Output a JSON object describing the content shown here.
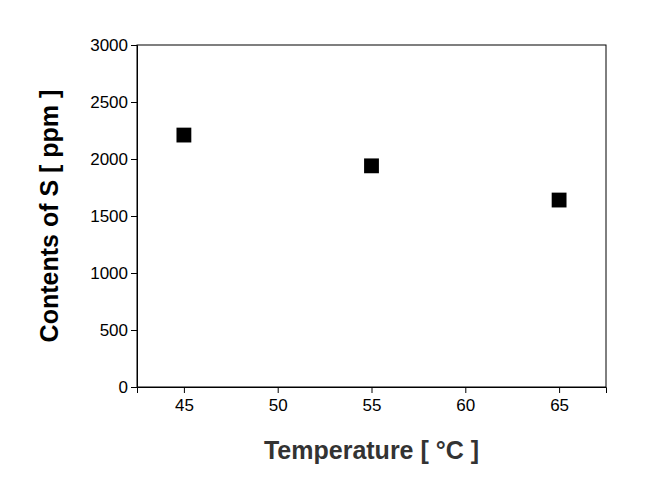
{
  "chart_data": {
    "type": "scatter",
    "x_label": "Temperature [ °C ]",
    "y_label": "Contents of S [ ppm ]",
    "x": [
      45,
      55,
      65
    ],
    "values": [
      2210,
      1940,
      1640
    ],
    "color": "#000000",
    "marker": "square",
    "xlim": [
      42.5,
      67.5
    ],
    "xticks": [
      45,
      50,
      55,
      60,
      65
    ],
    "ylim": [
      0,
      3000
    ],
    "yticks": [
      0,
      500,
      1000,
      1500,
      2000,
      2500,
      3000
    ]
  }
}
